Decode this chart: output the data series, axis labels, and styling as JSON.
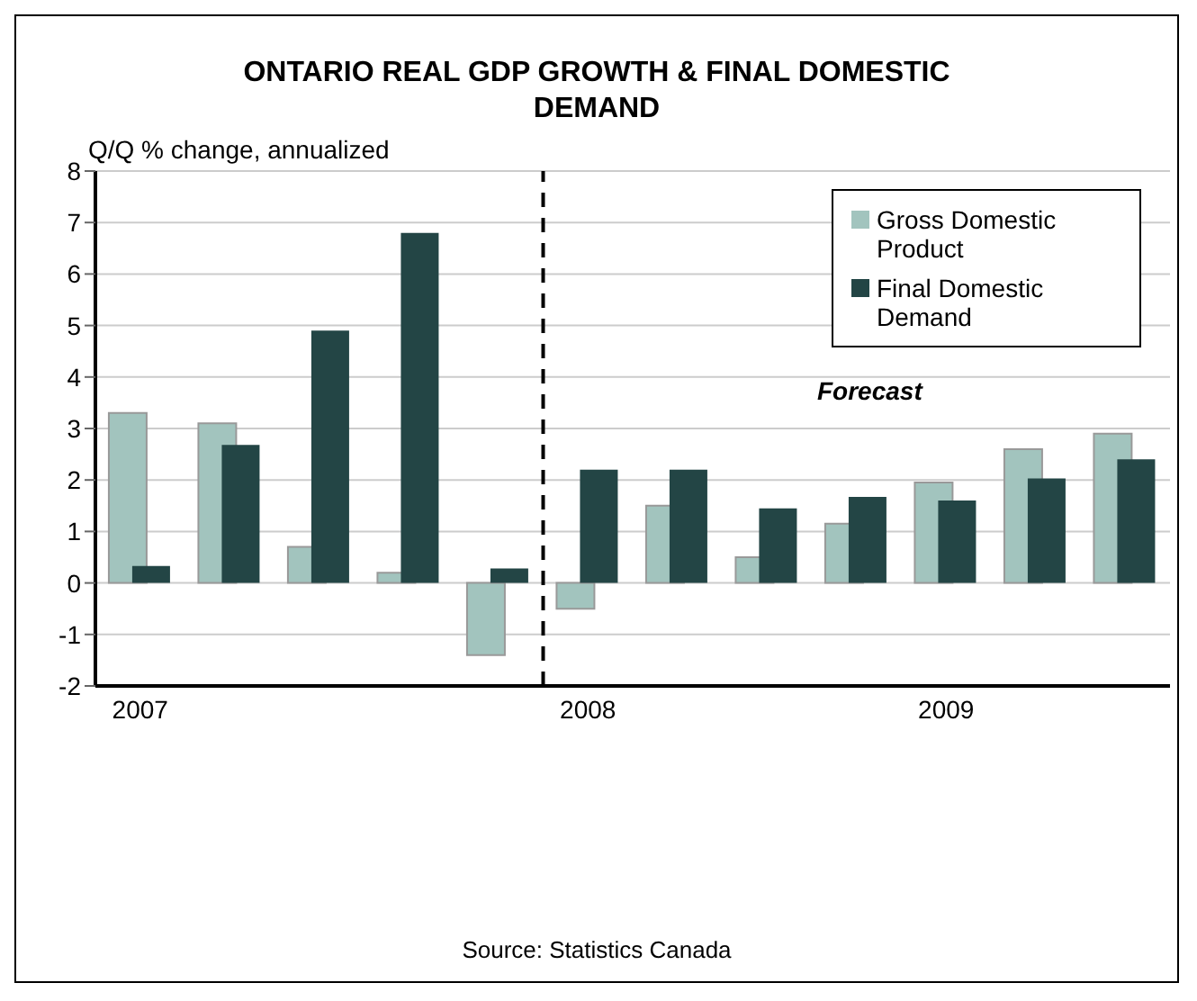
{
  "chart_data": {
    "type": "bar",
    "title": "ONTARIO REAL GDP GROWTH & FINAL DOMESTIC DEMAND",
    "ylabel": "Q/Q % change, annualized",
    "categories": [
      "2007",
      null,
      null,
      null,
      null,
      "2008",
      null,
      null,
      null,
      "2009",
      null,
      null
    ],
    "series": [
      {
        "name": "Gross Domestic Product",
        "color": "#a2c4be",
        "values": [
          3.3,
          3.1,
          0.7,
          0.2,
          -1.4,
          -0.5,
          1.5,
          0.5,
          1.15,
          1.95,
          2.6,
          2.9
        ]
      },
      {
        "name": "Final Domestic Demand",
        "color": "#234545",
        "values": [
          0.33,
          2.68,
          4.9,
          6.8,
          0.28,
          2.2,
          2.2,
          1.45,
          1.67,
          1.6,
          2.03,
          2.4
        ]
      }
    ],
    "ylim": [
      -2,
      8
    ],
    "yticks": [
      -2,
      -1,
      0,
      1,
      2,
      3,
      4,
      5,
      6,
      7,
      8
    ],
    "grid": "y",
    "legend": "top right",
    "ref_lines": [
      {
        "axis": "x",
        "value": "2008",
        "line_style": "dashed",
        "color": "#000000"
      }
    ],
    "annotations": [
      "Forecast",
      "Source: Statistics Canada"
    ]
  }
}
